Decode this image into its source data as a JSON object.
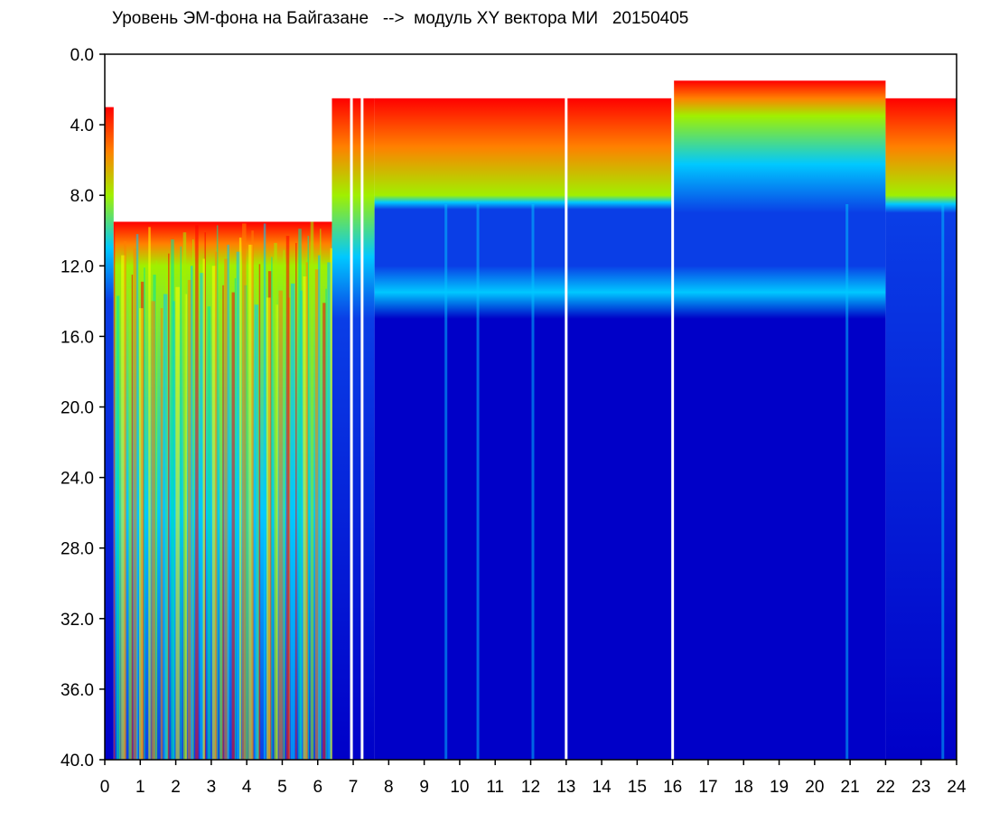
{
  "chart_data": {
    "type": "heatmap",
    "title": "Уровень ЭМ-фона на Байгазане   -->  модуль XY вектора МИ   20150405",
    "xlabel": "",
    "ylabel": "",
    "xlim": [
      0,
      24
    ],
    "ylim": [
      0,
      40
    ],
    "y_inverted": true,
    "x_ticks": [
      "0",
      "1",
      "2",
      "3",
      "4",
      "5",
      "6",
      "7",
      "8",
      "9",
      "10",
      "11",
      "12",
      "13",
      "14",
      "15",
      "16",
      "17",
      "18",
      "19",
      "20",
      "21",
      "22",
      "23",
      "24"
    ],
    "y_ticks": [
      "0.0",
      "4.0",
      "8.0",
      "12.0",
      "16.0",
      "20.0",
      "24.0",
      "28.0",
      "32.0",
      "36.0",
      "40.0"
    ],
    "colorscale": [
      "#0000c8",
      "#0a3ee6",
      "#00c8ff",
      "#00e6a0",
      "#a0f000",
      "#ffff00",
      "#ff8000",
      "#ff0000"
    ],
    "background_color": "#ffffff",
    "regions": [
      {
        "x": [
          0.0,
          0.25
        ],
        "signal_top": 3.0,
        "green_top": 8.0,
        "blue_top": 14.0
      },
      {
        "x": [
          0.25,
          6.4
        ],
        "signal_top": 9.5,
        "green_top": 12.0,
        "blue_top": 40.0
      },
      {
        "x": [
          6.4,
          7.6
        ],
        "signal_top": 2.5,
        "green_top": 8.0,
        "blue_top": 15.0
      },
      {
        "x": [
          7.6,
          16.0
        ],
        "signal_top": 2.5,
        "green_top": 8.0,
        "blue_top": 8.8,
        "cyan_band": [
          12.0,
          15.0
        ]
      },
      {
        "x": [
          16.0,
          22.0
        ],
        "signal_top": 1.5,
        "green_top": 3.5,
        "blue_top": 9.0,
        "cyan_band": [
          12.0,
          15.0
        ]
      },
      {
        "x": [
          22.0,
          24.0
        ],
        "signal_top": 2.5,
        "green_top": 8.0,
        "blue_top": 9.0
      }
    ],
    "gaps_x": [
      6.95,
      7.25,
      13.0,
      16.0
    ],
    "cyan_streaks_x": [
      9.6,
      10.5,
      12.05,
      20.9,
      23.6
    ]
  }
}
